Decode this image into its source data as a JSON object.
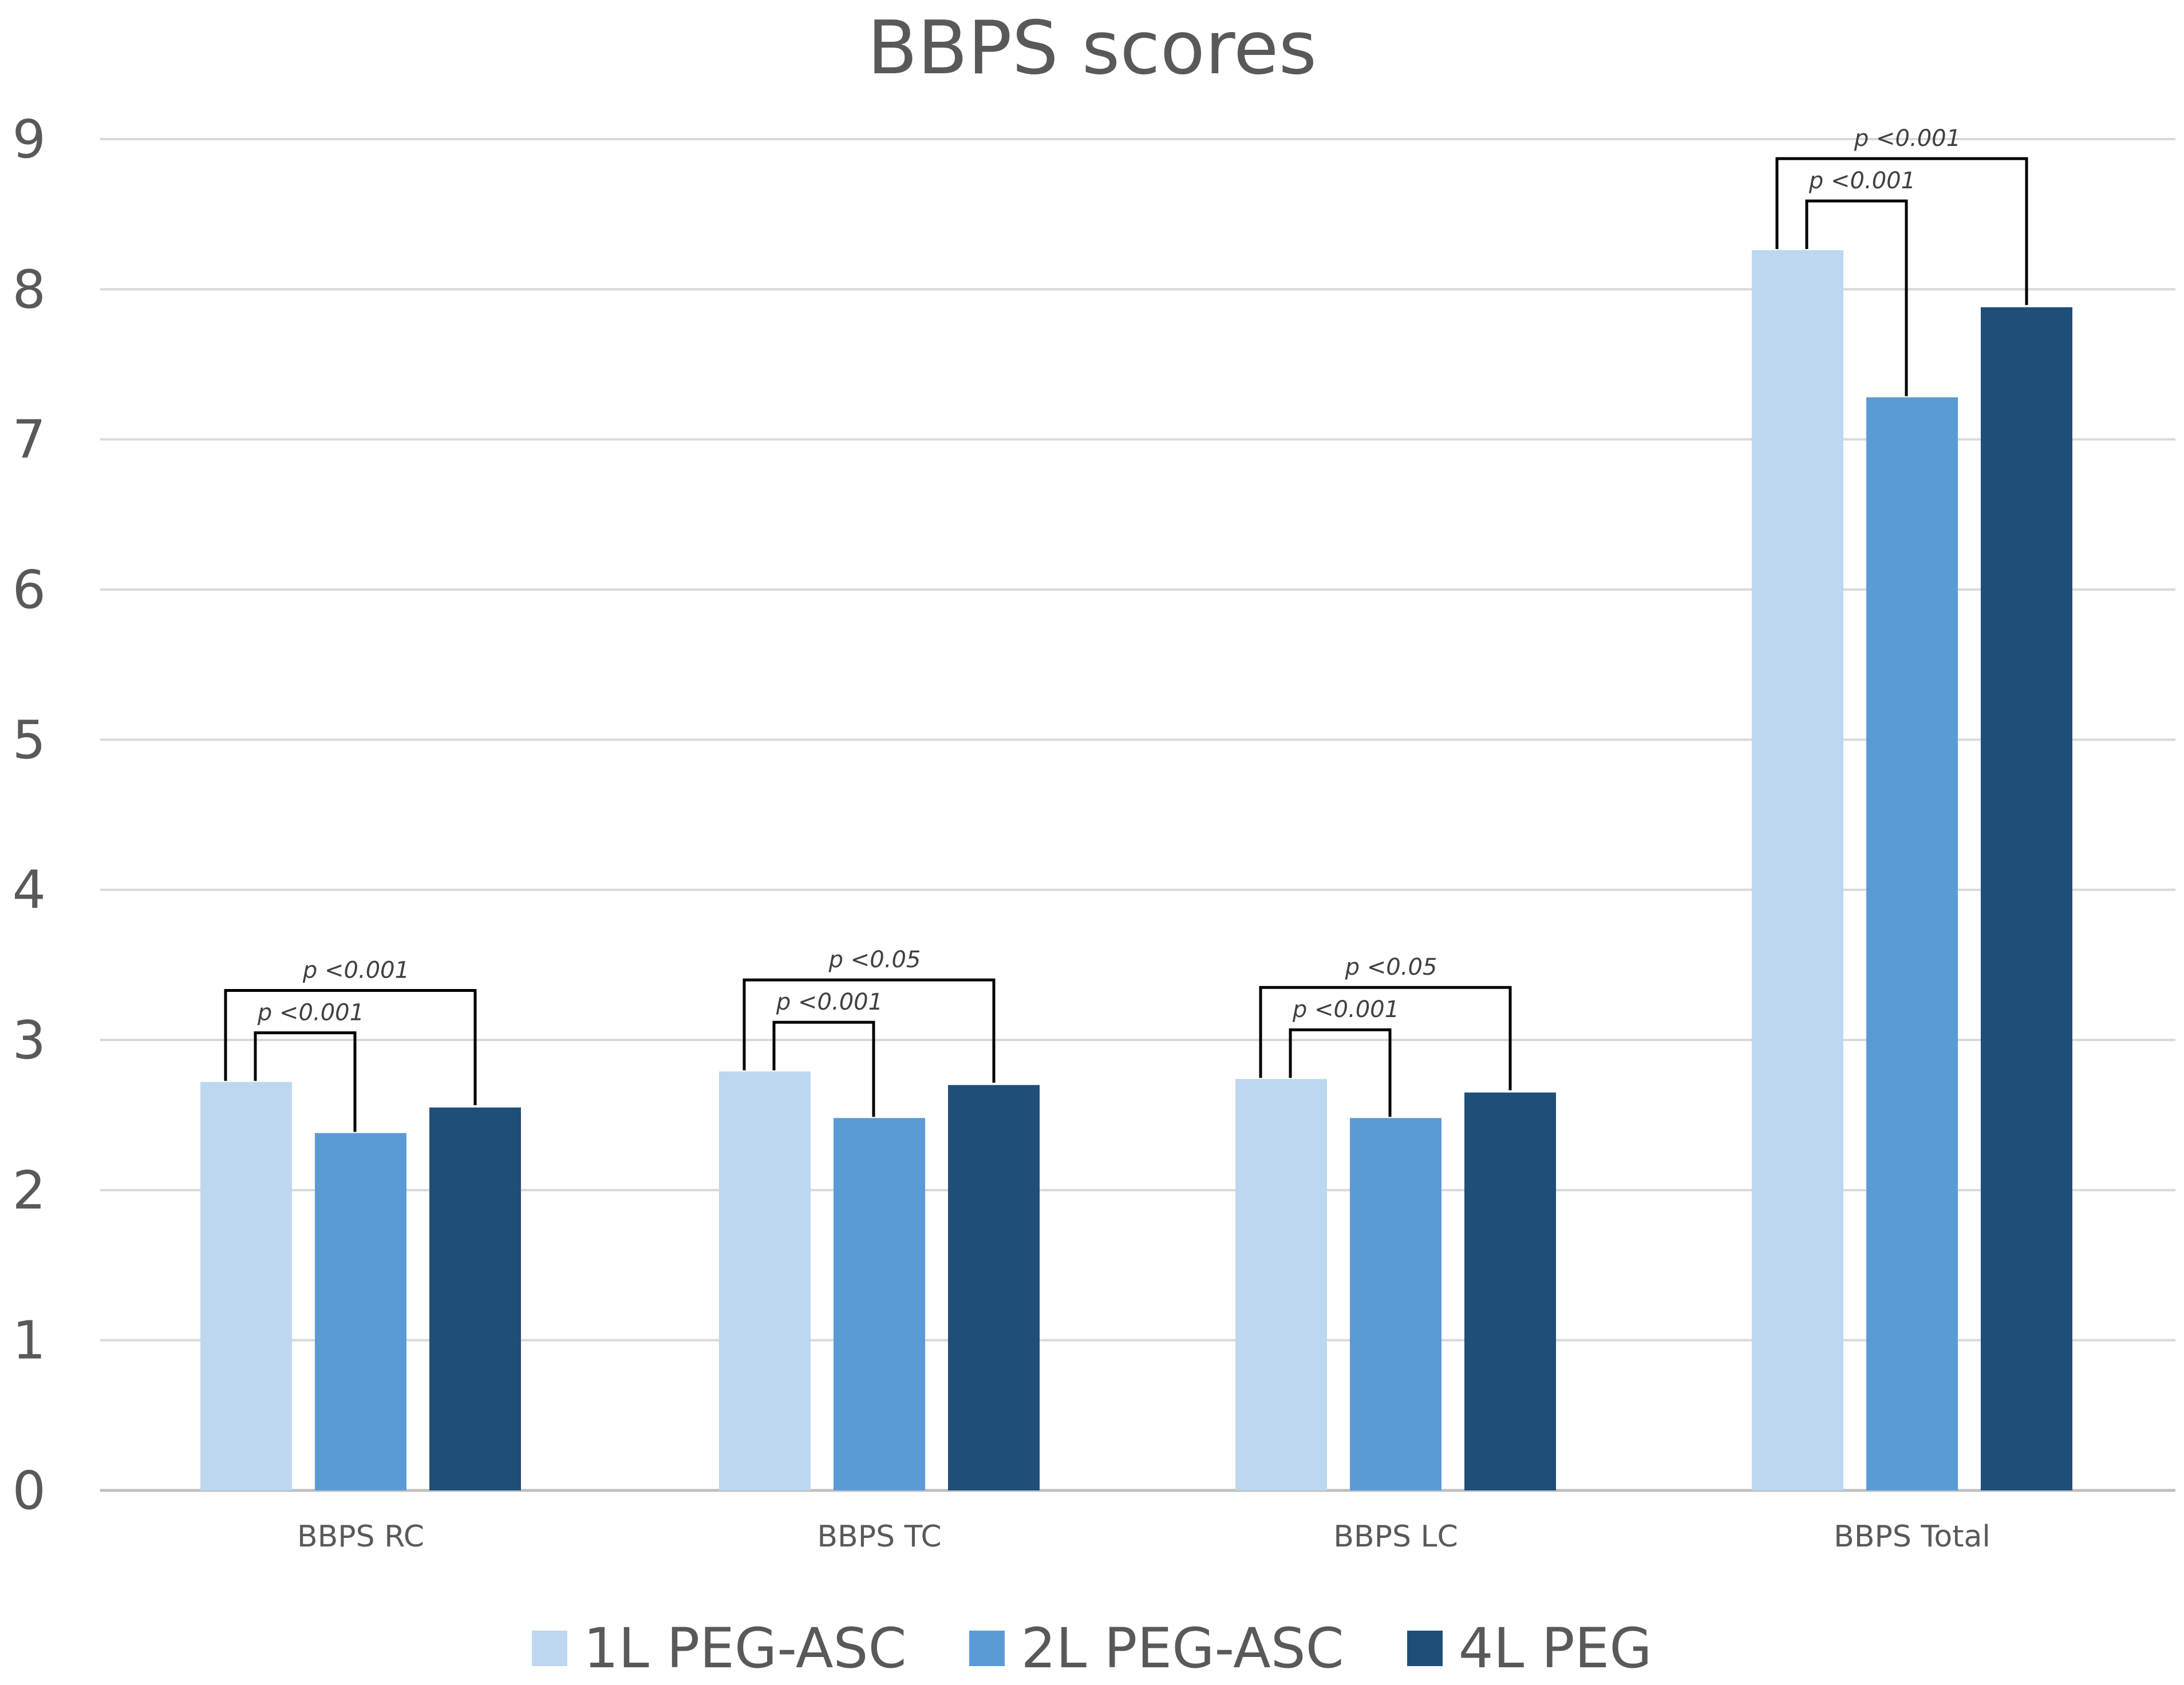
{
  "chart_data": {
    "type": "bar",
    "title": "BBPS scores",
    "xlabel": "",
    "ylabel": "",
    "ylim": [
      0,
      9
    ],
    "yticks": [
      0,
      1,
      2,
      3,
      4,
      5,
      6,
      7,
      8,
      9
    ],
    "grid": true,
    "legend_position": "bottom",
    "categories": [
      "BBPS RC",
      "BBPS TC",
      "BBPS LC",
      "BBPS Total"
    ],
    "series": [
      {
        "name": "1L PEG-ASC",
        "color": "#BDD7EE",
        "values": [
          2.72,
          2.79,
          2.74,
          8.26
        ]
      },
      {
        "name": "2L PEG-ASC",
        "color": "#5B9BD5",
        "values": [
          2.38,
          2.48,
          2.48,
          7.28
        ]
      },
      {
        "name": "4L PEG",
        "color": "#1F4E79",
        "values": [
          2.55,
          2.7,
          2.65,
          7.88
        ]
      }
    ],
    "annotations": [
      {
        "category": 0,
        "from_series": 0,
        "to_series": 1,
        "text": "p <0.001"
      },
      {
        "category": 0,
        "from_series": 0,
        "to_series": 2,
        "text": "p <0.001"
      },
      {
        "category": 1,
        "from_series": 0,
        "to_series": 1,
        "text": "p <0.001"
      },
      {
        "category": 1,
        "from_series": 0,
        "to_series": 2,
        "text": "p <0.05"
      },
      {
        "category": 2,
        "from_series": 0,
        "to_series": 1,
        "text": "p <0.001"
      },
      {
        "category": 2,
        "from_series": 0,
        "to_series": 2,
        "text": "p <0.05"
      },
      {
        "category": 3,
        "from_series": 0,
        "to_series": 1,
        "text": "p <0.001"
      },
      {
        "category": 3,
        "from_series": 0,
        "to_series": 2,
        "text": "p <0.001"
      }
    ]
  }
}
